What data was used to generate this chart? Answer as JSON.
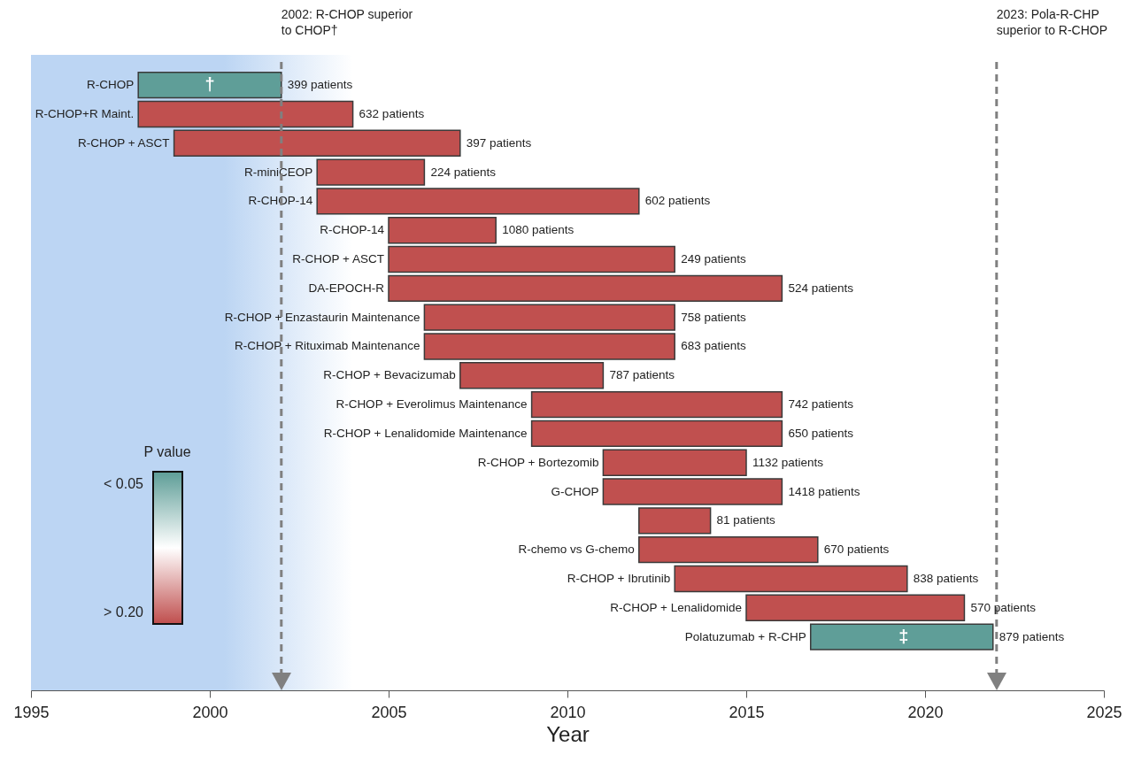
{
  "chart_data": {
    "type": "bar",
    "orientation": "horizontal",
    "xlabel": "Year",
    "categories": [
      "R-CHOP",
      "R-CHOP+R Maint.",
      "R-CHOP + ASCT",
      "R-miniCEOP",
      "R-CHOP-14",
      "R-CHOP-14",
      "R-CHOP + ASCT",
      "DA-EPOCH-R",
      "R-CHOP + Enzastaurin Maintenance",
      "R-CHOP + Rituximab Maintenance",
      "R-CHOP + Bevacizumab",
      "R-CHOP + Everolimus Maintenance",
      "R-CHOP + Lenalidomide Maintenance",
      "R-CHOP + Bortezomib",
      "G-CHOP",
      null,
      "R-chemo vs G-chemo",
      "R-CHOP + Ibrutinib",
      "R-CHOP + Lenalidomide",
      "Polatuzumab + R-CHP"
    ],
    "base": [
      1998,
      1998,
      1999,
      2003,
      2003,
      2005,
      2005,
      2005,
      2006,
      2006,
      2007,
      2009,
      2009,
      2011,
      2011,
      2012,
      2012,
      2013,
      2015,
      2016.8
    ],
    "values": [
      4,
      6,
      8,
      3,
      9,
      3,
      8,
      11,
      7,
      7,
      4,
      7,
      7,
      4,
      5,
      2,
      5,
      6.5,
      6.1,
      5.1
    ],
    "colors": [
      "#5f9e98",
      "#c0504f",
      "#c0504f",
      "#c0504f",
      "#c0504f",
      "#c0504f",
      "#c0504f",
      "#c0504f",
      "#c0504f",
      "#c0504f",
      "#c0504f",
      "#c0504f",
      "#c0504f",
      "#c0504f",
      "#c0504f",
      "#c0504f",
      "#c0504f",
      "#c0504f",
      "#c0504f",
      "#5f9e98"
    ],
    "clabel": "P value",
    "xlim": [
      1995,
      2025
    ],
    "xticks": [
      1995,
      2000,
      2005,
      2010,
      2015,
      2020,
      2025
    ],
    "grid": false,
    "ref_lines": [
      {
        "axis": "x",
        "value": 2002,
        "label": "2002: R-CHOP superior to CHOP†",
        "color": "#808080",
        "line_style": "dashed"
      },
      {
        "axis": "x",
        "value": 2022,
        "label": "2023: Pola-R-CHP superior to R-CHOP",
        "color": "#808080",
        "line_style": "dashed"
      }
    ],
    "bands": [
      {
        "axis": "x",
        "from": 1995,
        "to": 2004,
        "color": "#bcd5f3"
      }
    ],
    "annotations": [
      {
        "text": "†",
        "x": 2000,
        "y": "R-CHOP"
      },
      {
        "text": "‡",
        "x": 2019.4,
        "y": "Polatuzumab + R-CHP"
      },
      {
        "text": "399 patients",
        "x": 2002,
        "y": "R-CHOP"
      },
      {
        "text": "632 patients",
        "x": 2004,
        "y": "R-CHOP+R Maint."
      },
      {
        "text": "397 patients",
        "x": 2007,
        "y": "R-CHOP + ASCT"
      },
      {
        "text": "224 patients",
        "x": 2006,
        "y": "R-miniCEOP"
      },
      {
        "text": "602 patients",
        "x": 2012,
        "y": "R-CHOP-14"
      },
      {
        "text": "1080 patients",
        "x": 2008,
        "y": "R-CHOP-14"
      },
      {
        "text": "249 patients",
        "x": 2013
      },
      {
        "text": "524 patients",
        "x": 2016,
        "y": "DA-EPOCH-R"
      },
      {
        "text": "758 patients",
        "x": 2013,
        "y": "R-CHOP + Enzastaurin Maintenance"
      },
      {
        "text": "683 patients",
        "x": 2013,
        "y": "R-CHOP + Rituximab Maintenance"
      },
      {
        "text": "787 patients",
        "x": 2011,
        "y": "R-CHOP + Bevacizumab"
      },
      {
        "text": "742 patients",
        "x": 2016,
        "y": "R-CHOP + Everolimus Maintenance"
      },
      {
        "text": "650 patients",
        "x": 2016,
        "y": "R-CHOP + Lenalidomide Maintenance"
      },
      {
        "text": "1132 patients",
        "x": 2015,
        "y": "R-CHOP + Bortezomib"
      },
      {
        "text": "1418 patients",
        "x": 2016,
        "y": "G-CHOP"
      },
      {
        "text": "81 patients",
        "x": 2014
      },
      {
        "text": "670 patients",
        "x": 2017,
        "y": "R-chemo vs G-chemo"
      },
      {
        "text": "838 patients",
        "x": 2019.5,
        "y": "R-CHOP + Ibrutinib"
      },
      {
        "text": "570 patients",
        "x": 2021.1,
        "y": "R-CHOP + Lenalidomide"
      },
      {
        "text": "879 patients",
        "x": 2021.9,
        "y": "Polatuzumab + R-CHP"
      },
      "< 0.05",
      "> 0.20"
    ]
  }
}
